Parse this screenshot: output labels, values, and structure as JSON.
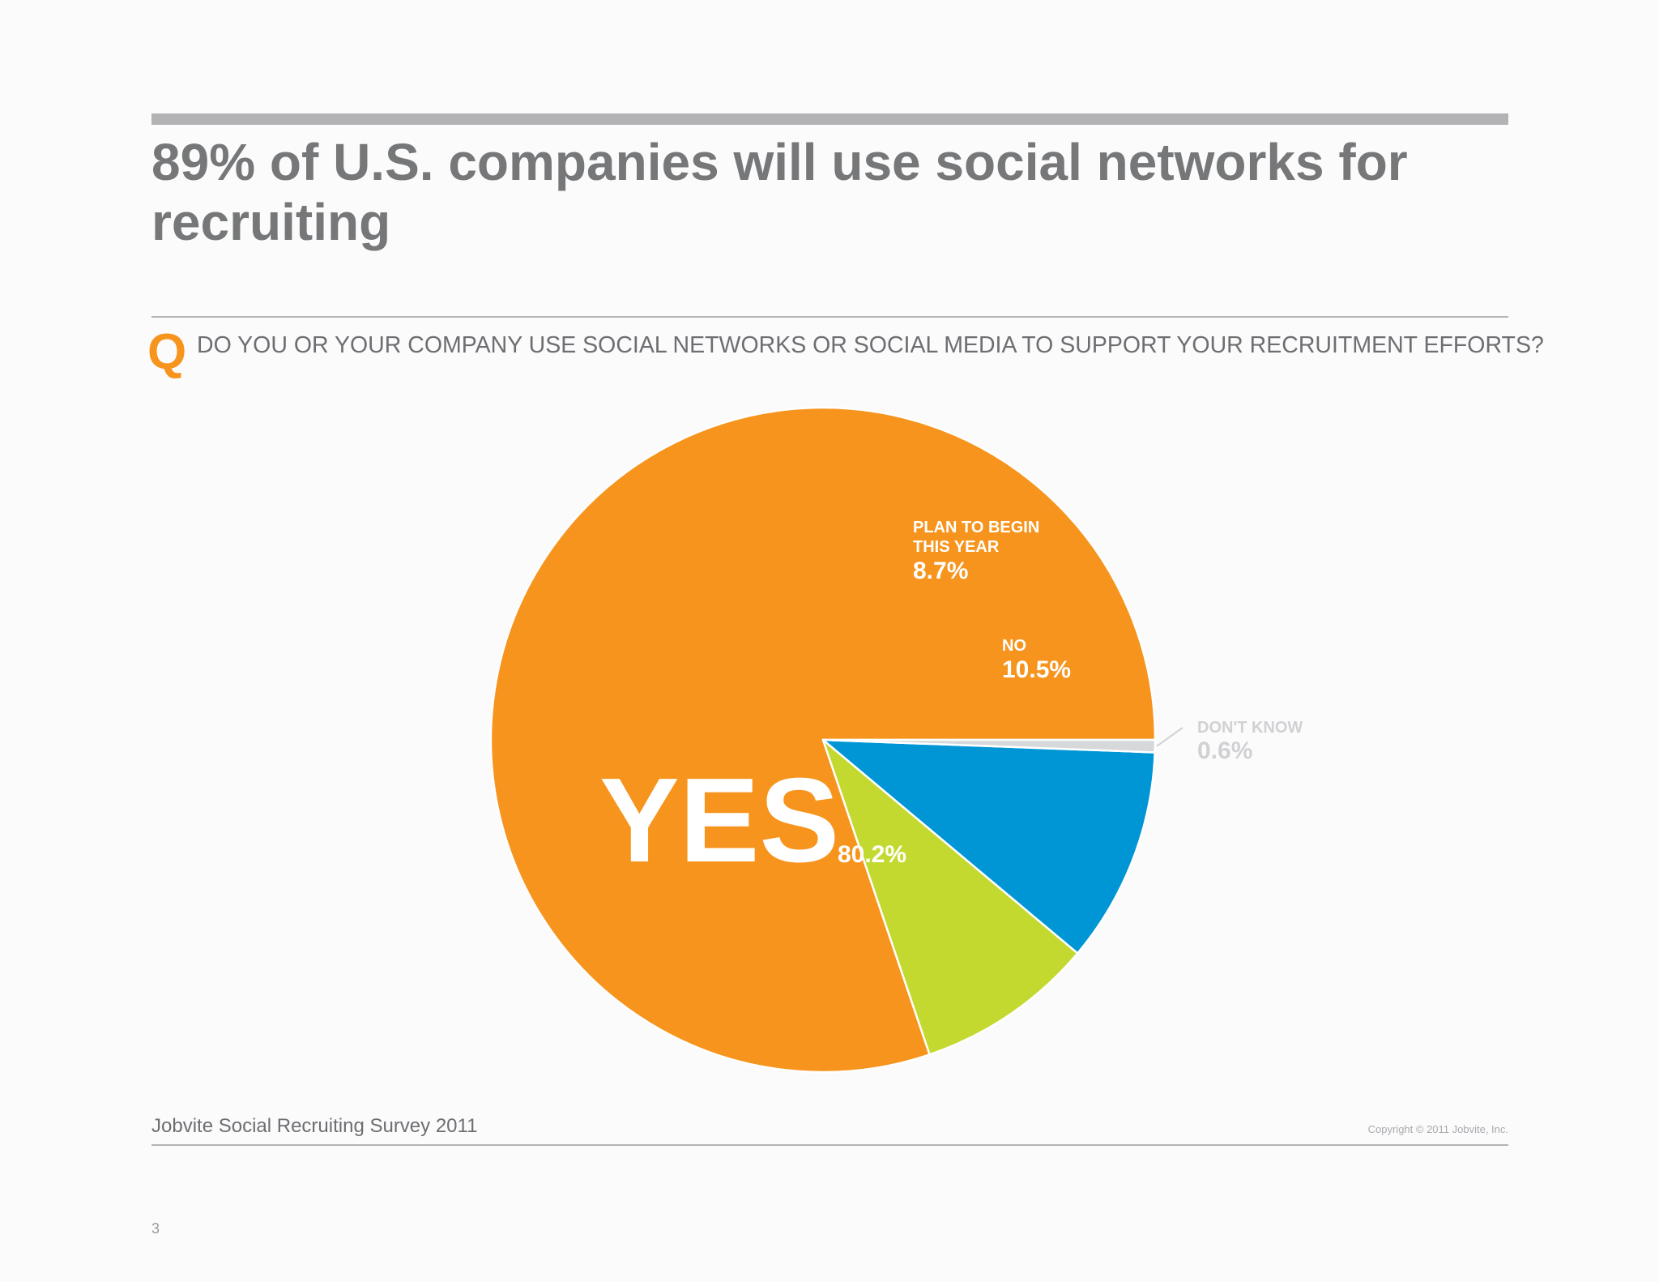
{
  "title": "89% of U.S. companies will use social networks for recruiting",
  "question": {
    "marker": "Q",
    "text": "DO YOU OR YOUR COMPANY USE SOCIAL NETWORKS OR SOCIAL MEDIA TO SUPPORT YOUR RECRUITMENT EFFORTS?"
  },
  "chart_data": {
    "type": "pie",
    "slices": [
      {
        "label": "YES",
        "value": 80.2,
        "value_label": "80.2%",
        "color": "#f7941d"
      },
      {
        "label": "PLAN TO BEGIN THIS YEAR",
        "label_lines": [
          "PLAN TO BEGIN",
          "THIS YEAR"
        ],
        "value": 8.7,
        "value_label": "8.7%",
        "color": "#c3d92f"
      },
      {
        "label": "NO",
        "value": 10.5,
        "value_label": "10.5%",
        "color": "#0096d6"
      },
      {
        "label": "DON'T KNOW",
        "value": 0.6,
        "value_label": "0.6%",
        "color": "#d7d8da"
      }
    ],
    "start_angle_deg": 0,
    "direction": "clockwise",
    "slice_border_color": "#ffffff",
    "outside_label_color": "#d0d1d3"
  },
  "footer": {
    "source": "Jobvite Social Recruiting Survey 2011",
    "copyright": "Copyright © 2011 Jobvite, Inc.",
    "page": "3"
  }
}
